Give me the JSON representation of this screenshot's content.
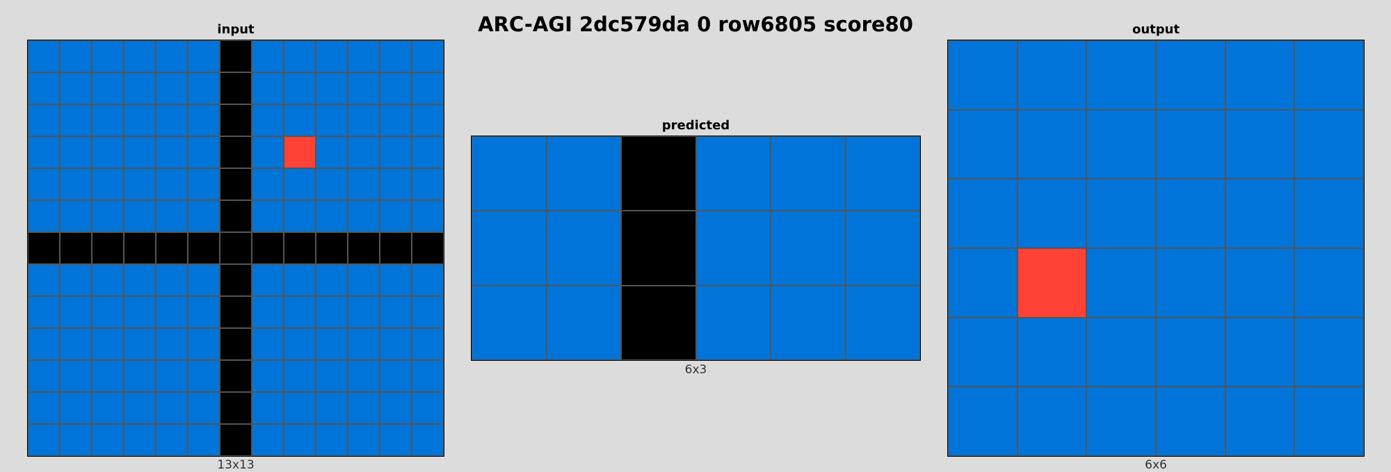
{
  "title": "ARC-AGI 2dc579da 0 row6805 score80",
  "palette": {
    "B": "#0074d9",
    "K": "#000000",
    "R": "#ff4136"
  },
  "panels": {
    "input": {
      "label": "input",
      "dims": "13x13",
      "rows": [
        "BBBBBBKBBBBBB",
        "BBBBBBKBBBBBB",
        "BBBBBBKBBBBBB",
        "BBBBBBKBRBBBB",
        "BBBBBBKBBBBBB",
        "BBBBBBKBBBBBB",
        "KKKKKKKKKKKKK",
        "BBBBBBKBBBBBB",
        "BBBBBBKBBBBBB",
        "BBBBBBKBBBBBB",
        "BBBBBBKBBBBBB",
        "BBBBBBKBBBBBB",
        "BBBBBBKBBBBBB"
      ]
    },
    "predicted": {
      "label": "predicted",
      "dims": "6x3",
      "rows": [
        "BBKBBB",
        "BBKBBB",
        "BBKBBB"
      ]
    },
    "output": {
      "label": "output",
      "dims": "6x6",
      "rows": [
        "BBBBBB",
        "BBBBBB",
        "BBBBBB",
        "BRBBBB",
        "BBBBBB",
        "BBBBBB"
      ]
    }
  }
}
